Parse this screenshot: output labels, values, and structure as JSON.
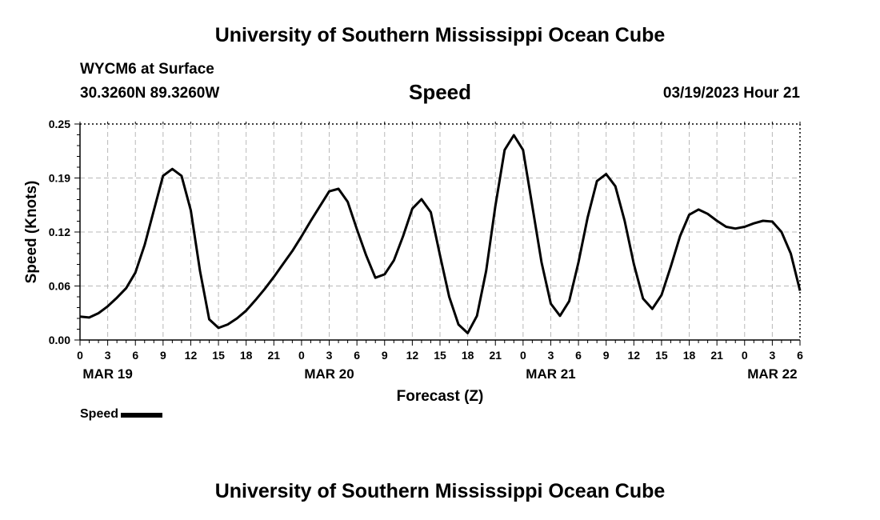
{
  "header": {
    "title": "University of Southern Mississippi Ocean Cube",
    "station": "WYCM6 at Surface",
    "coords": "30.3260N  89.3260W",
    "variable": "Speed",
    "timestamp": "03/19/2023 Hour 21"
  },
  "footer": {
    "title": "University of Southern Mississippi Ocean Cube"
  },
  "legend": {
    "label": "Speed",
    "color": "#000000"
  },
  "chart_data": {
    "type": "line",
    "title": "Speed",
    "xlabel": "Forecast (Z)",
    "ylabel": "Speed (Knots)",
    "ylim": [
      0,
      0.25
    ],
    "xlim_hours": [
      0,
      78
    ],
    "yticks": [
      "0.00",
      "0.06",
      "0.12",
      "0.19",
      "0.25"
    ],
    "xtick_labels": [
      "0",
      "3",
      "6",
      "9",
      "12",
      "15",
      "18",
      "21",
      "0",
      "3",
      "6",
      "9",
      "12",
      "15",
      "18",
      "21",
      "0",
      "3",
      "6",
      "9",
      "12",
      "15",
      "18",
      "21",
      "0",
      "3",
      "6"
    ],
    "date_labels": [
      "MAR 19",
      "MAR 20",
      "MAR 21",
      "MAR 22"
    ],
    "grid": true,
    "legend_position": "bottom-left",
    "series": [
      {
        "name": "Speed",
        "x": [
          0,
          1,
          2,
          3,
          4,
          5,
          6,
          7,
          8,
          9,
          10,
          11,
          12,
          13,
          14,
          15,
          16,
          17,
          18,
          19,
          20,
          21,
          22,
          23,
          24,
          25,
          26,
          27,
          28,
          29,
          30,
          31,
          32,
          33,
          34,
          35,
          36,
          37,
          38,
          39,
          40,
          41,
          42,
          43,
          44,
          45,
          46,
          47,
          48,
          49,
          50,
          51,
          52,
          53,
          54,
          55,
          56,
          57,
          58,
          59,
          60,
          61,
          62,
          63,
          64,
          65,
          66,
          67,
          68,
          69,
          70,
          71,
          72,
          73,
          74,
          75,
          76,
          77,
          78
        ],
        "values": [
          0.027,
          0.026,
          0.031,
          0.039,
          0.049,
          0.06,
          0.078,
          0.11,
          0.15,
          0.19,
          0.198,
          0.19,
          0.15,
          0.08,
          0.024,
          0.014,
          0.018,
          0.025,
          0.034,
          0.046,
          0.059,
          0.073,
          0.088,
          0.103,
          0.12,
          0.138,
          0.155,
          0.172,
          0.175,
          0.16,
          0.128,
          0.098,
          0.072,
          0.076,
          0.092,
          0.12,
          0.152,
          0.163,
          0.148,
          0.098,
          0.05,
          0.018,
          0.008,
          0.028,
          0.08,
          0.155,
          0.22,
          0.237,
          0.22,
          0.155,
          0.09,
          0.042,
          0.028,
          0.045,
          0.09,
          0.142,
          0.184,
          0.192,
          0.178,
          0.138,
          0.088,
          0.048,
          0.036,
          0.052,
          0.085,
          0.12,
          0.145,
          0.151,
          0.146,
          0.138,
          0.131,
          0.129,
          0.131,
          0.135,
          0.138,
          0.137,
          0.125,
          0.1,
          0.057
        ]
      }
    ]
  }
}
